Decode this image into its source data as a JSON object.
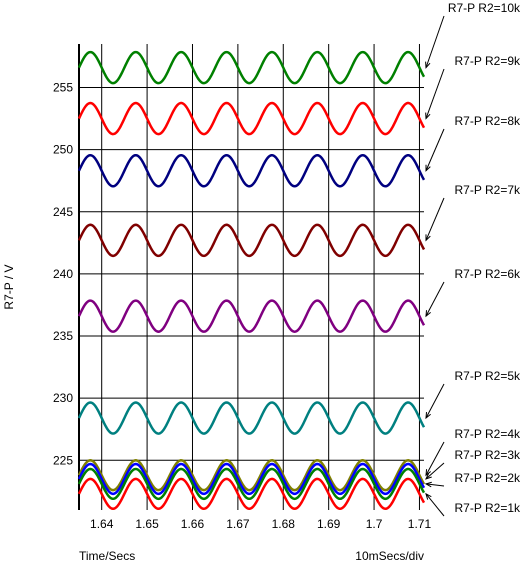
{
  "chart_data": {
    "type": "line",
    "xlabel": "Time/Secs",
    "ylabel": "R7-P / V",
    "x_scale_note": "10mSecs/div",
    "xlim": [
      1.635,
      1.711
    ],
    "ylim": [
      221,
      258.5
    ],
    "x_ticks": [
      "1.64",
      "1.65",
      "1.66",
      "1.67",
      "1.68",
      "1.69",
      "1.7",
      "1.71"
    ],
    "y_ticks": [
      "225",
      "230",
      "235",
      "240",
      "245",
      "250",
      "255"
    ],
    "grid": true,
    "period_s": 0.01,
    "series": [
      {
        "name": "R7-P R2=10k",
        "color": "#008000",
        "center": 256.6,
        "amplitude": 1.25,
        "label_color": "#000000"
      },
      {
        "name": "R7-P R2=9k",
        "color": "#ff0000",
        "center": 252.5,
        "amplitude": 1.25,
        "label_color": "#000000"
      },
      {
        "name": "R7-P R2=8k",
        "color": "#000080",
        "center": 248.3,
        "amplitude": 1.25,
        "label_color": "#000000"
      },
      {
        "name": "R7-P R2=7k",
        "color": "#800000",
        "center": 242.7,
        "amplitude": 1.25,
        "label_color": "#000000"
      },
      {
        "name": "R7-P R2=6k",
        "color": "#800080",
        "center": 236.6,
        "amplitude": 1.25,
        "label_color": "#000000"
      },
      {
        "name": "R7-P R2=5k",
        "color": "#008080",
        "center": 228.4,
        "amplitude": 1.25,
        "label_color": "#000000"
      },
      {
        "name": "R7-P R2=4k",
        "color": "#808000",
        "center": 223.8,
        "amplitude": 1.2,
        "label_color": "#000000"
      },
      {
        "name": "R7-P R2=3k",
        "color": "#0000ff",
        "center": 223.5,
        "amplitude": 1.2,
        "label_color": "#0000ff"
      },
      {
        "name": "R7-P R2=2k",
        "color": "#008000",
        "center": 223.1,
        "amplitude": 1.2,
        "label_color": "#000000"
      },
      {
        "name": "R7-P R2=1k",
        "color": "#ff0000",
        "center": 222.3,
        "amplitude": 1.2,
        "label_color": "#000000"
      }
    ]
  }
}
